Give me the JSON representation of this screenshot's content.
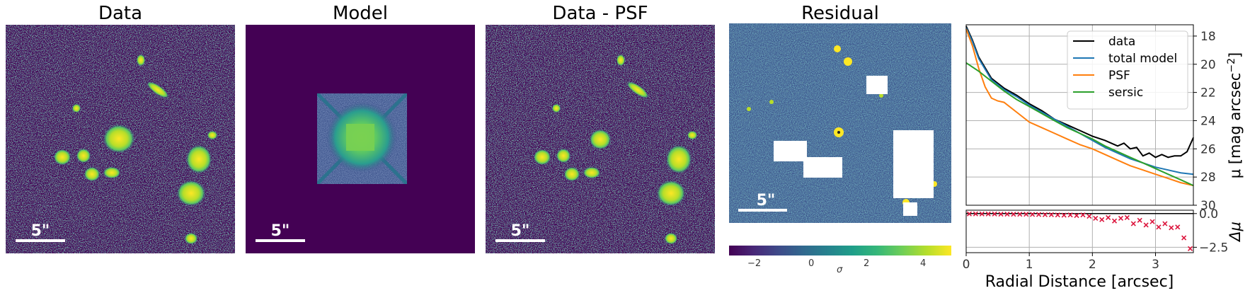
{
  "panels": [
    {
      "title": "Data",
      "scale_label": "5\""
    },
    {
      "title": "Model",
      "scale_label": "5\""
    },
    {
      "title": "Data - PSF",
      "scale_label": "5\""
    },
    {
      "title": "Residual",
      "scale_label": "5\""
    }
  ],
  "colors": {
    "viridis_dark": "#440154",
    "viridis_mid": "#21918c",
    "viridis_green": "#5ec962",
    "viridis_yellow": "#fde725"
  },
  "colorbar": {
    "ticks": [
      "−2",
      "0",
      "2",
      "4"
    ],
    "label": "σ",
    "range": [
      -3,
      5
    ]
  },
  "chart_data": [
    {
      "type": "line",
      "xlabel": "",
      "ylabel": "μ [mag arcsec$^{-2}$]",
      "ylabel_text": "μ [mag arcsec",
      "ylabel_sup": "−2",
      "ylabel_close": "]",
      "xlim": [
        0,
        3.6
      ],
      "ylim": [
        30,
        17.2
      ],
      "yticks": [
        "18",
        "20",
        "22",
        "24",
        "26",
        "28",
        "30"
      ],
      "ytick_values": [
        18,
        20,
        22,
        24,
        26,
        28,
        30
      ],
      "yaxis_side": "right",
      "grid": true,
      "legend_position": "top-right",
      "series": [
        {
          "name": "data",
          "color": "#000000",
          "x": [
            0,
            0.1,
            0.2,
            0.4,
            0.6,
            0.8,
            1.0,
            1.2,
            1.4,
            1.6,
            1.8,
            2.0,
            2.2,
            2.4,
            2.5,
            2.6,
            2.7,
            2.8,
            2.9,
            3.0,
            3.1,
            3.2,
            3.3,
            3.4,
            3.5,
            3.6
          ],
          "y": [
            17.3,
            18.3,
            19.5,
            21.0,
            21.7,
            22.2,
            22.8,
            23.3,
            23.9,
            24.3,
            24.7,
            25.1,
            25.4,
            25.8,
            25.6,
            26.0,
            25.9,
            26.5,
            26.3,
            26.6,
            26.4,
            26.6,
            26.5,
            26.5,
            26.2,
            25.2
          ]
        },
        {
          "name": "total model",
          "color": "#1f77b4",
          "x": [
            0,
            0.1,
            0.2,
            0.4,
            0.6,
            0.8,
            1.0,
            1.2,
            1.4,
            1.6,
            1.8,
            2.0,
            2.2,
            2.4,
            2.6,
            2.8,
            3.0,
            3.2,
            3.4,
            3.6
          ],
          "y": [
            17.4,
            18.4,
            19.6,
            21.1,
            21.8,
            22.3,
            22.9,
            23.4,
            23.9,
            24.4,
            24.9,
            25.4,
            25.9,
            26.3,
            26.7,
            27.0,
            27.3,
            27.5,
            27.7,
            27.8
          ]
        },
        {
          "name": "PSF",
          "color": "#ff7f0e",
          "x": [
            0,
            0.1,
            0.2,
            0.3,
            0.4,
            0.5,
            0.6,
            0.8,
            1.0,
            1.2,
            1.4,
            1.6,
            1.8,
            2.0,
            2.2,
            2.4,
            2.6,
            2.8,
            3.0,
            3.2,
            3.4,
            3.6
          ],
          "y": [
            17.5,
            18.7,
            20.3,
            21.6,
            22.4,
            22.6,
            22.7,
            23.4,
            24.1,
            24.5,
            24.9,
            25.3,
            25.7,
            26.0,
            26.4,
            26.8,
            27.2,
            27.5,
            27.8,
            28.1,
            28.4,
            28.6
          ]
        },
        {
          "name": "sersic",
          "color": "#2ca02c",
          "x": [
            0,
            0.2,
            0.4,
            0.6,
            0.8,
            1.0,
            1.2,
            1.4,
            1.6,
            1.8,
            2.0,
            2.2,
            2.4,
            2.6,
            2.8,
            3.0,
            3.2,
            3.4,
            3.6
          ],
          "y": [
            19.9,
            20.5,
            21.2,
            21.9,
            22.5,
            23.0,
            23.5,
            24.0,
            24.5,
            24.9,
            25.3,
            25.8,
            26.2,
            26.6,
            27.0,
            27.4,
            27.8,
            28.2,
            28.6
          ]
        }
      ]
    },
    {
      "type": "scatter",
      "xlabel": "Radial Distance [arcsec]",
      "ylabel": "Δμ",
      "xlim": [
        0,
        3.6
      ],
      "ylim": [
        -2.9,
        0.25
      ],
      "xticks": [
        "0",
        "1",
        "2",
        "3"
      ],
      "xtick_values": [
        0,
        1,
        2,
        3
      ],
      "yticks": [
        "0.0",
        "−2.5"
      ],
      "ytick_values": [
        0,
        -2.5
      ],
      "yaxis_side": "right",
      "grid": true,
      "marker": "x",
      "marker_color": "#dc143c",
      "reference_line": 0,
      "series": [
        {
          "x": [
            0.05,
            0.15,
            0.25,
            0.35,
            0.45,
            0.55,
            0.65,
            0.75,
            0.85,
            0.95,
            1.05,
            1.15,
            1.25,
            1.35,
            1.45,
            1.55,
            1.65,
            1.75,
            1.85,
            1.95,
            2.05,
            2.15,
            2.25,
            2.35,
            2.45,
            2.55,
            2.65,
            2.75,
            2.85,
            2.95,
            3.05,
            3.15,
            3.25,
            3.35,
            3.45,
            3.55
          ],
          "y": [
            -0.02,
            -0.02,
            -0.03,
            -0.03,
            -0.03,
            -0.04,
            -0.04,
            -0.05,
            -0.05,
            -0.05,
            -0.06,
            -0.07,
            -0.08,
            -0.08,
            -0.1,
            -0.12,
            -0.1,
            -0.15,
            -0.1,
            -0.2,
            -0.35,
            -0.45,
            -0.3,
            -0.55,
            -0.35,
            -0.3,
            -0.75,
            -0.5,
            -0.85,
            -0.6,
            -1.0,
            -0.75,
            -1.05,
            -1.0,
            -1.8,
            -2.6
          ]
        }
      ]
    }
  ]
}
